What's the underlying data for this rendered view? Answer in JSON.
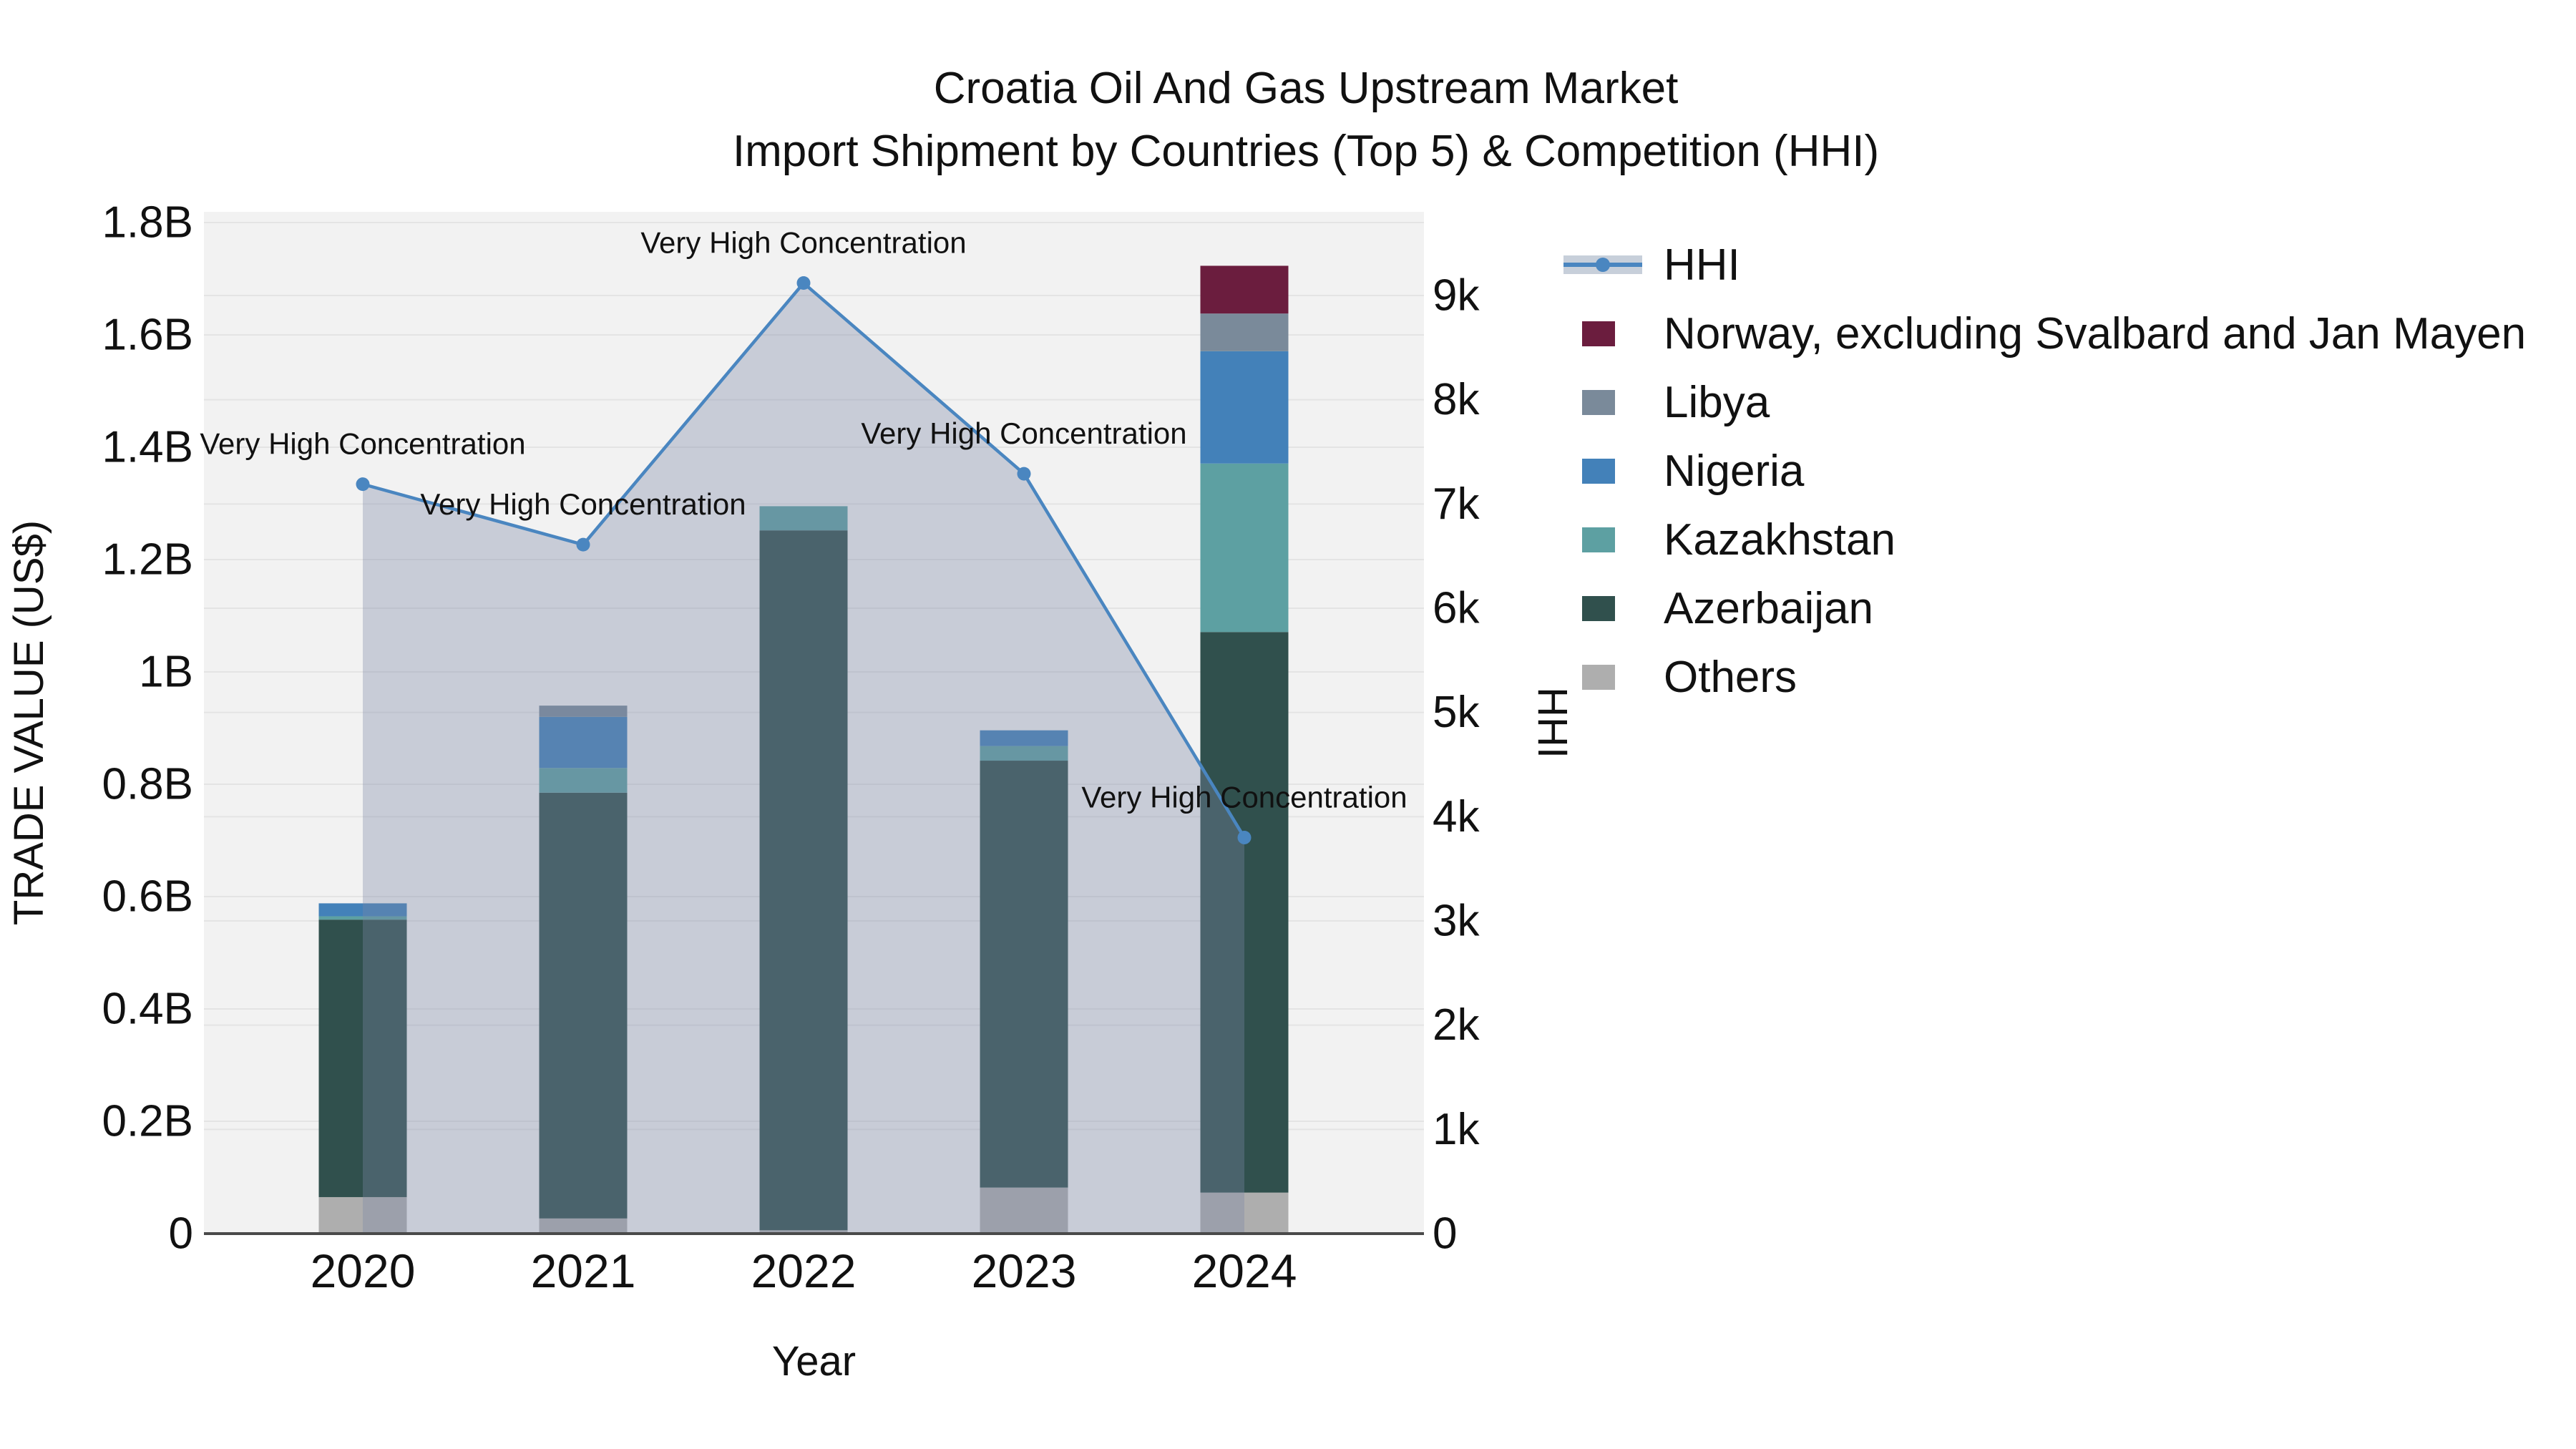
{
  "title": {
    "line1": "Croatia Oil And Gas Upstream Market",
    "line2": "Import Shipment by Countries (Top 5) & Competition (HHI)"
  },
  "axes": {
    "left": {
      "title": "TRADE VALUE (US$)",
      "tick_labels": [
        "0",
        "0.2B",
        "0.4B",
        "0.6B",
        "0.8B",
        "1B",
        "1.2B",
        "1.4B",
        "1.6B",
        "1.8B"
      ]
    },
    "right": {
      "title": "HHI",
      "tick_labels": [
        "0",
        "1k",
        "2k",
        "3k",
        "4k",
        "5k",
        "6k",
        "7k",
        "8k",
        "9k"
      ]
    },
    "x": {
      "title": "Year",
      "tick_labels": [
        "2020",
        "2021",
        "2022",
        "2023",
        "2024"
      ]
    }
  },
  "legend": {
    "items": [
      {
        "label": "HHI",
        "type": "line-band",
        "color": "#4a86c0",
        "band_color": "#c7cfda"
      },
      {
        "label": "Norway, excluding Svalbard and Jan Mayen",
        "type": "swatch",
        "color": "#6b1d3e"
      },
      {
        "label": "Libya",
        "type": "swatch",
        "color": "#7a8a9a"
      },
      {
        "label": "Nigeria",
        "type": "swatch",
        "color": "#4381b9"
      },
      {
        "label": "Kazakhstan",
        "type": "swatch",
        "color": "#5da0a2"
      },
      {
        "label": "Azerbaijan",
        "type": "swatch",
        "color": "#30504d"
      },
      {
        "label": "Others",
        "type": "swatch",
        "color": "#aeaeae"
      }
    ]
  },
  "colors": {
    "plot_background": "#f2f2f2",
    "gridline": "#e4e4e4",
    "axis_line": "#4a4a4a",
    "text": "#111111",
    "hhi_line": "#4a86c0",
    "hhi_area_fill": "rgba(123,135,165,0.35)"
  },
  "chart_data": {
    "type": "bar",
    "subtype": "stacked-bars-with-line",
    "categories": [
      "2020",
      "2021",
      "2022",
      "2023",
      "2024"
    ],
    "bar_value_unit": "US$ millions",
    "bar_axis": "left",
    "ylim_left_musd": [
      0,
      1800
    ],
    "left_tick_step_musd": 200,
    "series": [
      {
        "name": "Others",
        "slug": "others",
        "color": "#aeaeae",
        "values_musd": [
          65,
          27,
          6,
          82,
          73
        ]
      },
      {
        "name": "Azerbaijan",
        "slug": "azerbaijan",
        "color": "#30504d",
        "values_musd": [
          494,
          758,
          1246,
          760,
          998
        ]
      },
      {
        "name": "Kazakhstan",
        "slug": "kazakhstan",
        "color": "#5da0a2",
        "values_musd": [
          6,
          44,
          43,
          26,
          300
        ]
      },
      {
        "name": "Nigeria",
        "slug": "nigeria",
        "color": "#4381b9",
        "values_musd": [
          23,
          91,
          0,
          28,
          200
        ]
      },
      {
        "name": "Libya",
        "slug": "libya",
        "color": "#7a8a9a",
        "values_musd": [
          0,
          20,
          0,
          0,
          67
        ]
      },
      {
        "name": "Norway, excluding Svalbard and Jan Mayen",
        "slug": "norway-excluding-svalbard-and-jan-mayen",
        "color": "#6b1d3e",
        "values_musd": [
          0,
          0,
          0,
          0,
          85
        ]
      }
    ],
    "bar_totals_musd": [
      588,
      940,
      1295,
      896,
      1723
    ],
    "line_series": {
      "name": "HHI",
      "axis": "right",
      "color": "#4a86c0",
      "area_fill": "rgba(123,135,165,0.35)",
      "values": [
        7190,
        6610,
        9120,
        7290,
        3800
      ],
      "point_annotations": [
        "Very High Concentration",
        "Very High Concentration",
        "Very High Concentration",
        "Very High Concentration",
        "Very High Concentration"
      ]
    },
    "ylim_right_hhi": [
      0,
      9000
    ],
    "right_tick_step_hhi": 1000,
    "grid": true,
    "legend_position": "right"
  }
}
